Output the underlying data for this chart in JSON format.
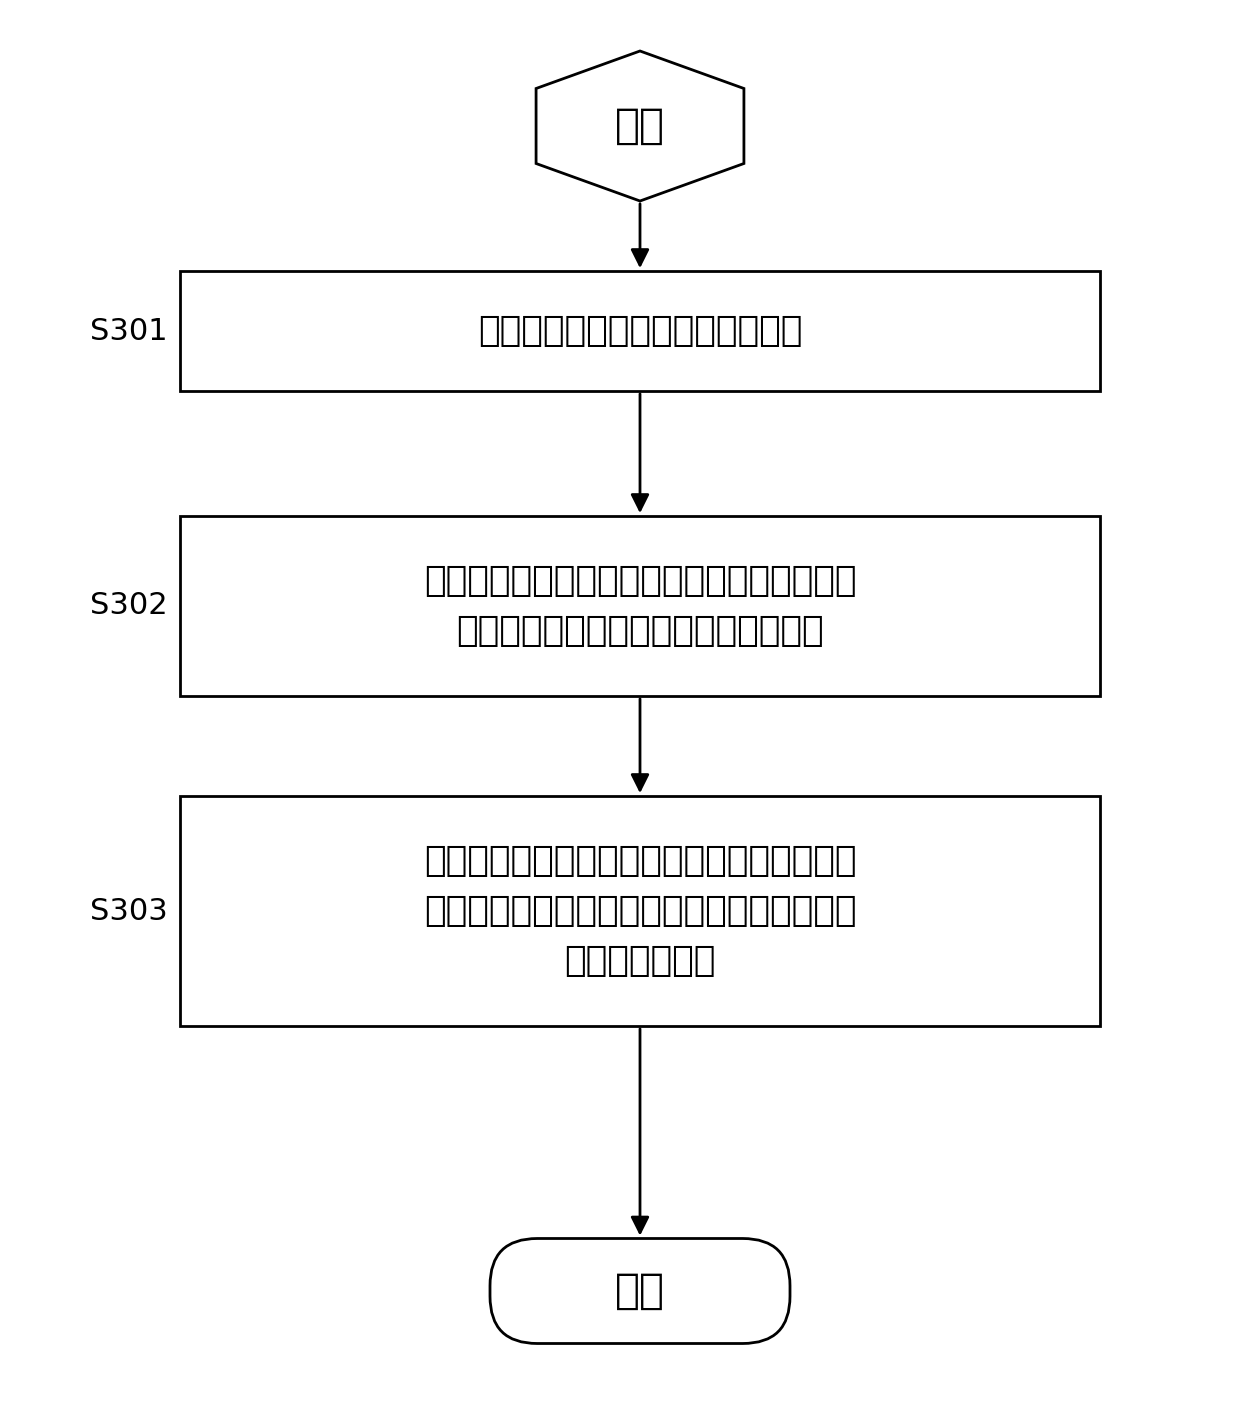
{
  "background_color": "#ffffff",
  "start_label": "开始",
  "end_label": "结束",
  "steps": [
    {
      "id": "S301",
      "label": "S301",
      "text": "获取所述多个地层样本的测井资料"
    },
    {
      "id": "S302",
      "label": "S302",
      "text": "对所述的测井资料进行解释，得到联合电阻率\n增大系数与地层含水饱和度的关系模型"
    },
    {
      "id": "S303",
      "label": "S303",
      "text": "根据所述的联合电阻率增大系数与地层含水饱\n和度的关系模型以及所述的岩电关系模型确定\n地层含水饱和度"
    }
  ],
  "line_color": "#000000",
  "text_color": "#000000",
  "font_size": 26,
  "label_font_size": 22,
  "box_edge_color": "#000000",
  "box_face_color": "#ffffff",
  "arrow_color": "#000000",
  "line_width": 2.0
}
